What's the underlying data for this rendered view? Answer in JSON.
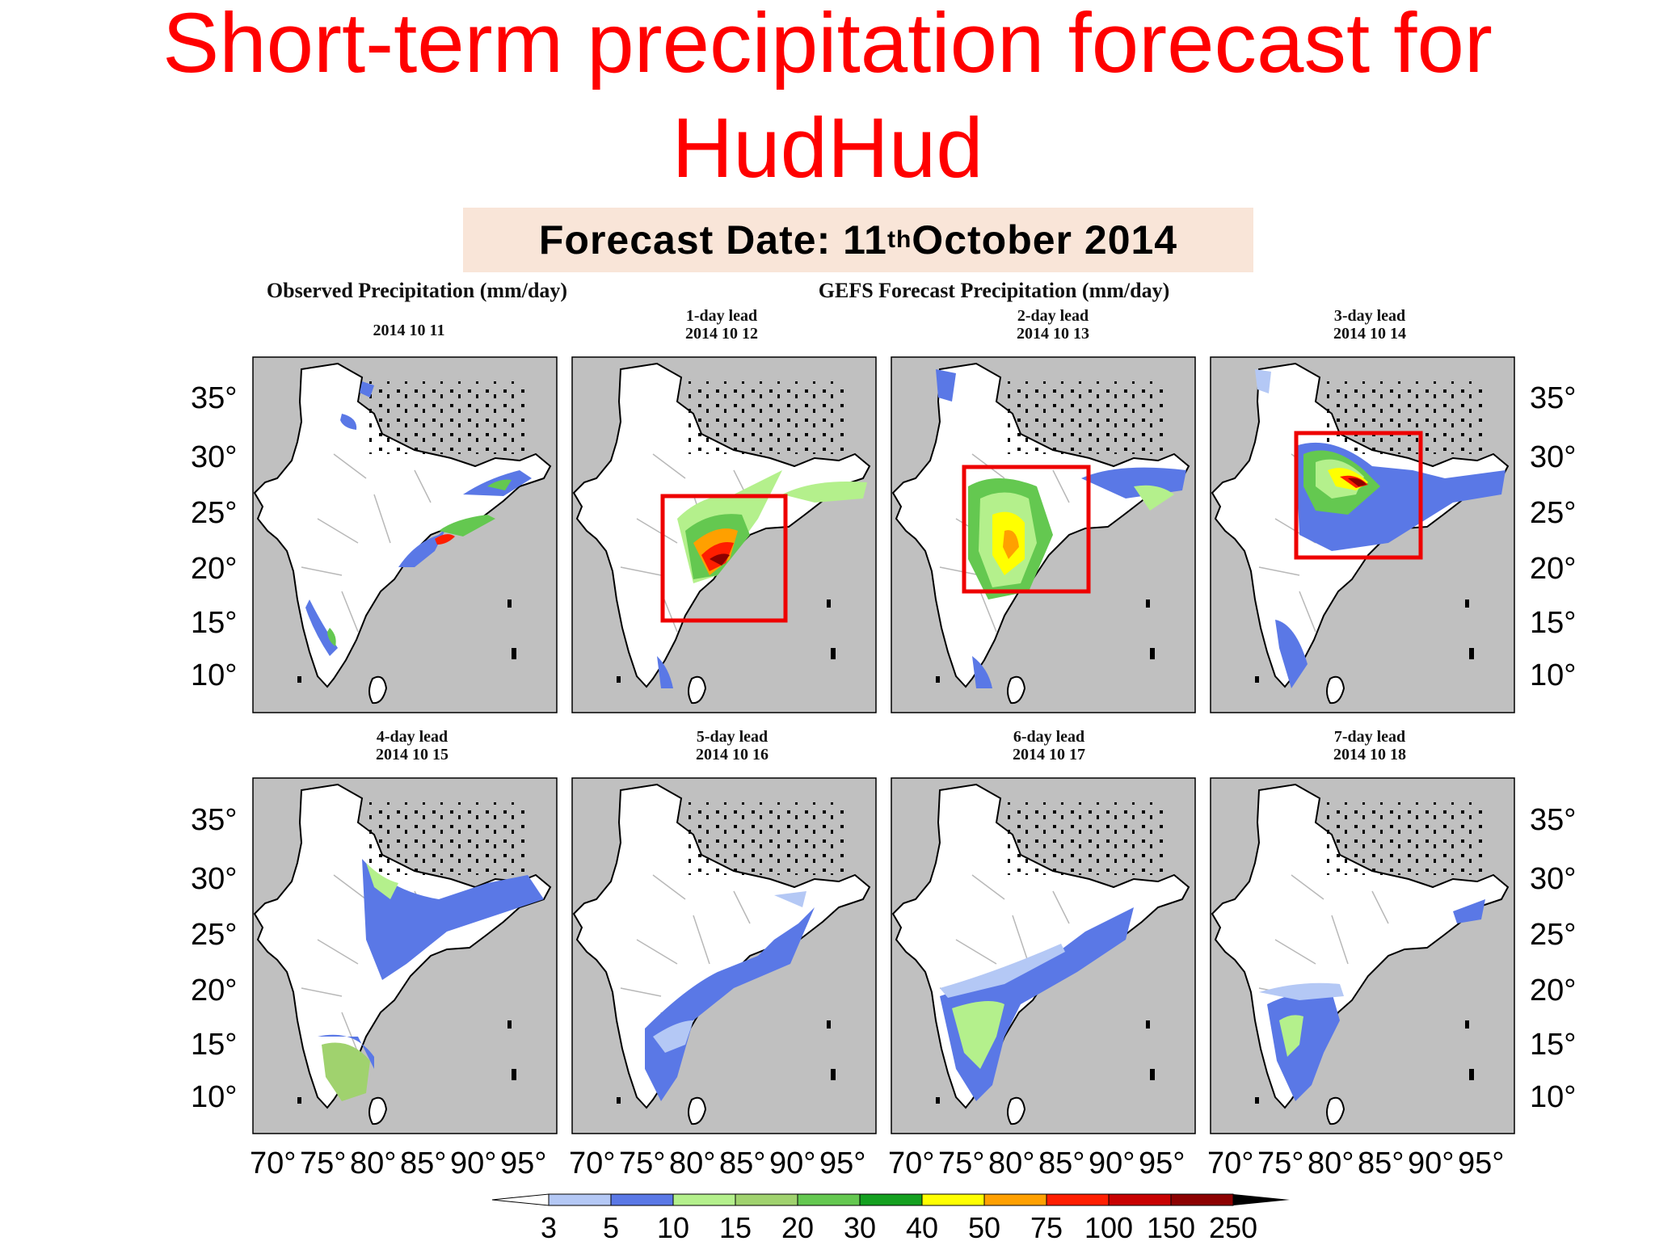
{
  "title": {
    "line1": "Short-term precipitation forecast for",
    "line2": "HudHud"
  },
  "forecast_date": {
    "prefix": "Forecast Date: 11",
    "sup": "th",
    "suffix": " October 2014"
  },
  "headers": {
    "observed": "Observed Precipitation (mm/day)",
    "gefs": "GEFS Forecast Precipitation (mm/day)"
  },
  "panels": [
    {
      "lead": "",
      "date": "2014 10 11"
    },
    {
      "lead": "1-day lead",
      "date": "2014 10 12"
    },
    {
      "lead": "2-day lead",
      "date": "2014 10 13"
    },
    {
      "lead": "3-day lead",
      "date": "2014 10 14"
    },
    {
      "lead": "4-day lead",
      "date": "2014 10 15"
    },
    {
      "lead": "5-day lead",
      "date": "2014 10 16"
    },
    {
      "lead": "6-day lead",
      "date": "2014 10 17"
    },
    {
      "lead": "7-day lead",
      "date": "2014 10 18"
    }
  ],
  "latitude_labels": [
    "35°",
    "30°",
    "25°",
    "20°",
    "15°",
    "10°"
  ],
  "longitude_labels": [
    "70°",
    "75°",
    "80°",
    "85°",
    "90°",
    "95°"
  ],
  "colorbar": {
    "labels": [
      "3",
      "5",
      "10",
      "15",
      "20",
      "30",
      "40",
      "50",
      "75",
      "100",
      "150",
      "250"
    ],
    "colors": [
      "#ffffff",
      "#b4c8f5",
      "#5a78e6",
      "#b4f08c",
      "#a0d26e",
      "#64c850",
      "#14a020",
      "#ffff00",
      "#ffa000",
      "#ff1e00",
      "#c80000",
      "#8c0000",
      "#000000"
    ]
  },
  "colors": {
    "title": "#ff0000",
    "forecast_box_bg": "#f9e5d8",
    "map_background": "#c0c0c0",
    "land": "#ffffff",
    "highlight_box": "#ee0000"
  }
}
